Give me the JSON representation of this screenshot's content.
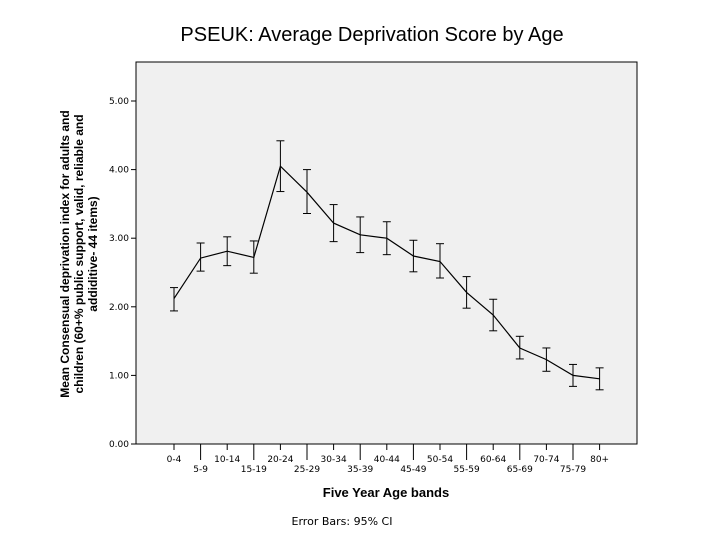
{
  "chart_data": {
    "type": "line",
    "title": "PSEUK: Average Deprivation Score by Age",
    "xlabel": "Five Year Age bands",
    "ylabel_lines": [
      "Mean Consensual deprivation index for adults and",
      "children (60+% public support, valid, reliable and",
      "addiditive- 44 items)"
    ],
    "footnote": "Error Bars: 95% CI",
    "ylim": [
      0,
      5.5
    ],
    "yticks": [
      "0.00",
      "1.00",
      "2.00",
      "3.00",
      "4.00",
      "5.00"
    ],
    "grid": false,
    "categories": [
      "0-4",
      "5-9",
      "10-14",
      "15-19",
      "20-24",
      "25-29",
      "30-34",
      "35-39",
      "40-44",
      "45-49",
      "50-54",
      "55-59",
      "60-64",
      "65-69",
      "70-74",
      "75-79",
      "80+"
    ],
    "series": [
      {
        "values": [
          2.12,
          2.71,
          2.81,
          2.72,
          4.05,
          3.67,
          3.22,
          3.05,
          3.0,
          2.74,
          2.66,
          2.21,
          1.88,
          1.4,
          1.23,
          1.0,
          0.95
        ],
        "ci_lower": [
          1.94,
          2.52,
          2.6,
          2.49,
          3.68,
          3.36,
          2.95,
          2.79,
          2.76,
          2.51,
          2.42,
          1.98,
          1.65,
          1.24,
          1.06,
          0.84,
          0.79
        ],
        "ci_upper": [
          2.28,
          2.93,
          3.02,
          2.96,
          4.42,
          4.0,
          3.49,
          3.31,
          3.24,
          2.97,
          2.92,
          2.44,
          2.11,
          1.57,
          1.4,
          1.16,
          1.11
        ]
      }
    ]
  }
}
